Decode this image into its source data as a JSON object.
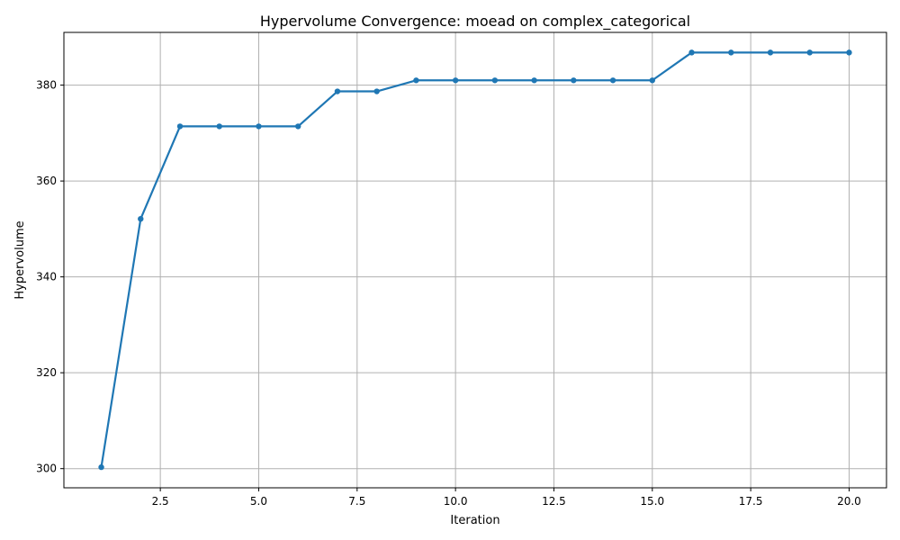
{
  "chart_data": {
    "type": "line",
    "title": "Hypervolume Convergence: moead on complex_categorical",
    "xlabel": "Iteration",
    "ylabel": "Hypervolume",
    "xlim": [
      0.05,
      20.95
    ],
    "ylim": [
      296.0,
      391.0
    ],
    "xticks": [
      2.5,
      5.0,
      7.5,
      10.0,
      12.5,
      15.0,
      17.5,
      20.0
    ],
    "xtick_labels": [
      "2.5",
      "5.0",
      "7.5",
      "10.0",
      "12.5",
      "15.0",
      "17.5",
      "20.0"
    ],
    "yticks": [
      300,
      320,
      340,
      360,
      380
    ],
    "ytick_labels": [
      "300",
      "320",
      "340",
      "360",
      "380"
    ],
    "grid": true,
    "series": [
      {
        "color": "#1f77b4",
        "marker": "circle",
        "x": [
          1,
          2,
          3,
          4,
          5,
          6,
          7,
          8,
          9,
          10,
          11,
          12,
          13,
          14,
          15,
          16,
          17,
          18,
          19,
          20
        ],
        "y": [
          300.3,
          352.1,
          371.4,
          371.4,
          371.4,
          371.4,
          378.7,
          378.7,
          381.0,
          381.0,
          381.0,
          381.0,
          381.0,
          381.0,
          381.0,
          386.8,
          386.8,
          386.8,
          386.8,
          386.8
        ]
      }
    ]
  }
}
